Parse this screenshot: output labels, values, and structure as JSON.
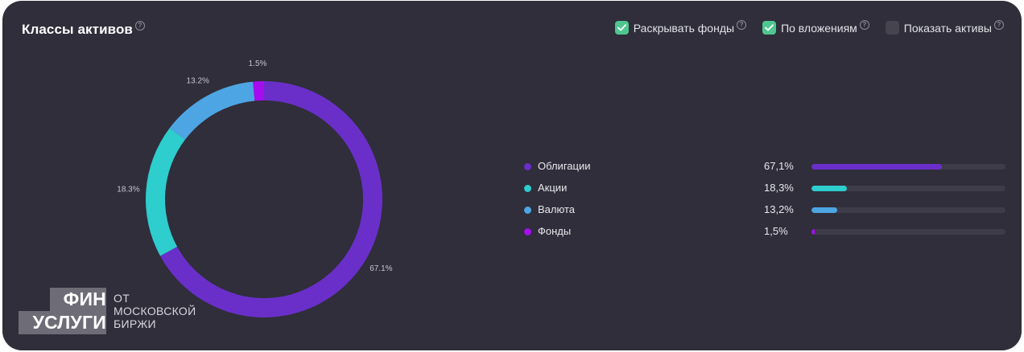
{
  "header": {
    "title": "Классы активов"
  },
  "toggles": [
    {
      "label": "Раскрывать фонды",
      "checked": true
    },
    {
      "label": "По вложениям",
      "checked": true
    },
    {
      "label": "Показать активы",
      "checked": false
    }
  ],
  "chart_data": {
    "type": "pie",
    "categories": [
      "Облигации",
      "Акции",
      "Валюта",
      "Фонды"
    ],
    "values": [
      67.1,
      18.3,
      13.2,
      1.5
    ],
    "slice_labels": [
      "67.1%",
      "18.3%",
      "13.2%",
      "1.5%"
    ],
    "colors": [
      "#6a2fc9",
      "#2ecdce",
      "#4ea5e3",
      "#a50df0"
    ],
    "donut": true
  },
  "legend": [
    {
      "name": "Облигации",
      "value": "67,1%",
      "percent": 67.1,
      "color": "#6a2fc9"
    },
    {
      "name": "Акции",
      "value": "18,3%",
      "percent": 18.3,
      "color": "#2ecdce"
    },
    {
      "name": "Валюта",
      "value": "13,2%",
      "percent": 13.2,
      "color": "#4ea5e3"
    },
    {
      "name": "Фонды",
      "value": "1,5%",
      "percent": 1.5,
      "color": "#a50df0"
    }
  ],
  "brand": {
    "line1": "ФИН",
    "line2": "УСЛУГИ",
    "tagline": "ОТ\nМОСКОВСКОЙ\nБИРЖИ"
  },
  "icons": {
    "help": "help-circle-icon",
    "check": "check-icon"
  }
}
